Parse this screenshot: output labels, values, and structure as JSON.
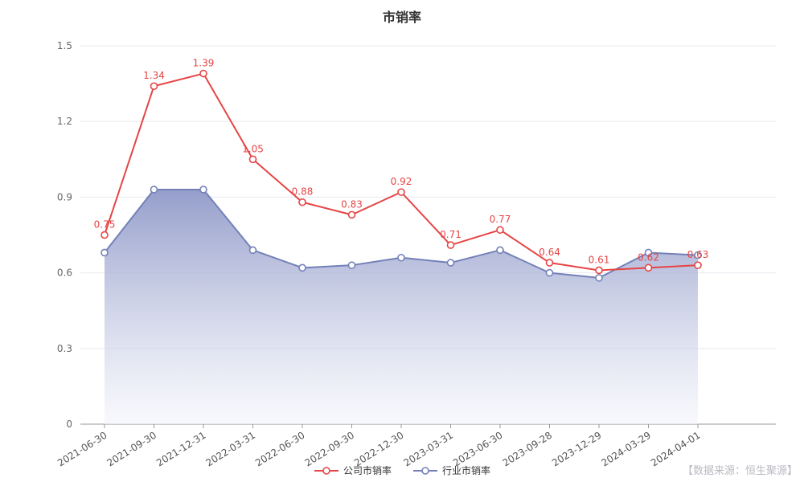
{
  "title": "市销率",
  "chart_data": {
    "type": "line",
    "title": "市销率",
    "categories": [
      "2021-06-30",
      "2021-09-30",
      "2021-12-31",
      "2022-03-31",
      "2022-06-30",
      "2022-09-30",
      "2022-12-30",
      "2023-03-31",
      "2023-06-30",
      "2023-09-28",
      "2023-12-29",
      "2024-03-29",
      "2024-04-01"
    ],
    "series": [
      {
        "name": "公司市销率",
        "color": "#e64545",
        "values": [
          0.75,
          1.34,
          1.39,
          1.05,
          0.88,
          0.83,
          0.92,
          0.71,
          0.77,
          0.64,
          0.61,
          0.62,
          0.63
        ],
        "labels": true,
        "area": false
      },
      {
        "name": "行业市销率",
        "color": "#7381b8",
        "values": [
          0.68,
          0.93,
          0.93,
          0.69,
          0.62,
          0.63,
          0.66,
          0.64,
          0.69,
          0.6,
          0.58,
          0.68,
          0.67
        ],
        "labels": false,
        "area": true
      }
    ],
    "ylim": [
      0,
      1.5
    ],
    "yticks": [
      0,
      0.3,
      0.6,
      0.9,
      1.2,
      1.5
    ],
    "xlabel": "",
    "ylabel": "",
    "grid": true,
    "legend_position": "bottom",
    "x_label_rotation": -32,
    "area_gradient_top": "#8f99c8",
    "area_gradient_bottom": "#f4f5fb",
    "gridline_color": "#e8e8f0",
    "axis_line_color": "#999999",
    "tick_label_color": "#666666",
    "x_label_color": "#555555"
  },
  "legend": {
    "items": [
      {
        "label": "公司市销率",
        "color": "#e64545"
      },
      {
        "label": "行业市销率",
        "color": "#7381b8"
      }
    ]
  },
  "source": "【数据来源：恒生聚源】"
}
